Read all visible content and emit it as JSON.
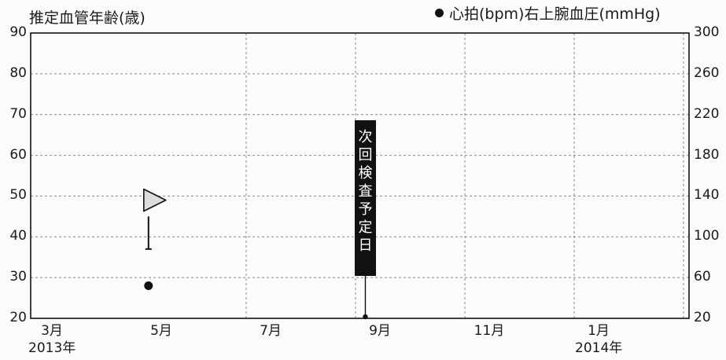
{
  "chart_data": {
    "type": "scatter",
    "left_axis": {
      "title": "推定血管年齢(歳)",
      "range": [
        20,
        90
      ],
      "ticks": [
        "20",
        "30",
        "40",
        "50",
        "60",
        "70",
        "80",
        "90"
      ]
    },
    "right_axis": {
      "title": "● 心拍(bpm)右上腕血圧(mmHg)",
      "range": [
        20,
        300
      ],
      "ticks": [
        "20",
        "60",
        "100",
        "140",
        "180",
        "220",
        "260",
        "300"
      ]
    },
    "x_axis": {
      "ticks": [
        {
          "label": "3月",
          "sub": "2013年",
          "date": "2013-03"
        },
        {
          "label": "5月",
          "sub": "",
          "date": "2013-05"
        },
        {
          "label": "7月",
          "sub": "",
          "date": "2013-07"
        },
        {
          "label": "9月",
          "sub": "",
          "date": "2013-09"
        },
        {
          "label": "11月",
          "sub": "",
          "date": "2013-11"
        },
        {
          "label": "1月",
          "sub": "2014年",
          "date": "2014-01"
        }
      ]
    },
    "grid": true,
    "series": [
      {
        "marker": "triangle",
        "axis": "left",
        "points": [
          {
            "date": "2013-04-24",
            "y": 49
          }
        ]
      },
      {
        "marker": "range",
        "axis": "left",
        "points": [
          {
            "date": "2013-04-24",
            "low": 37,
            "high": 45
          }
        ]
      },
      {
        "marker": "dot",
        "axis": "left",
        "points": [
          {
            "date": "2013-04-24",
            "y": 28
          }
        ]
      }
    ],
    "annotations": [
      {
        "label": "次回検査予定日",
        "chars": [
          "次",
          "回",
          "検",
          "査",
          "予",
          "定",
          "日"
        ],
        "date": "2013-08-23"
      }
    ]
  }
}
